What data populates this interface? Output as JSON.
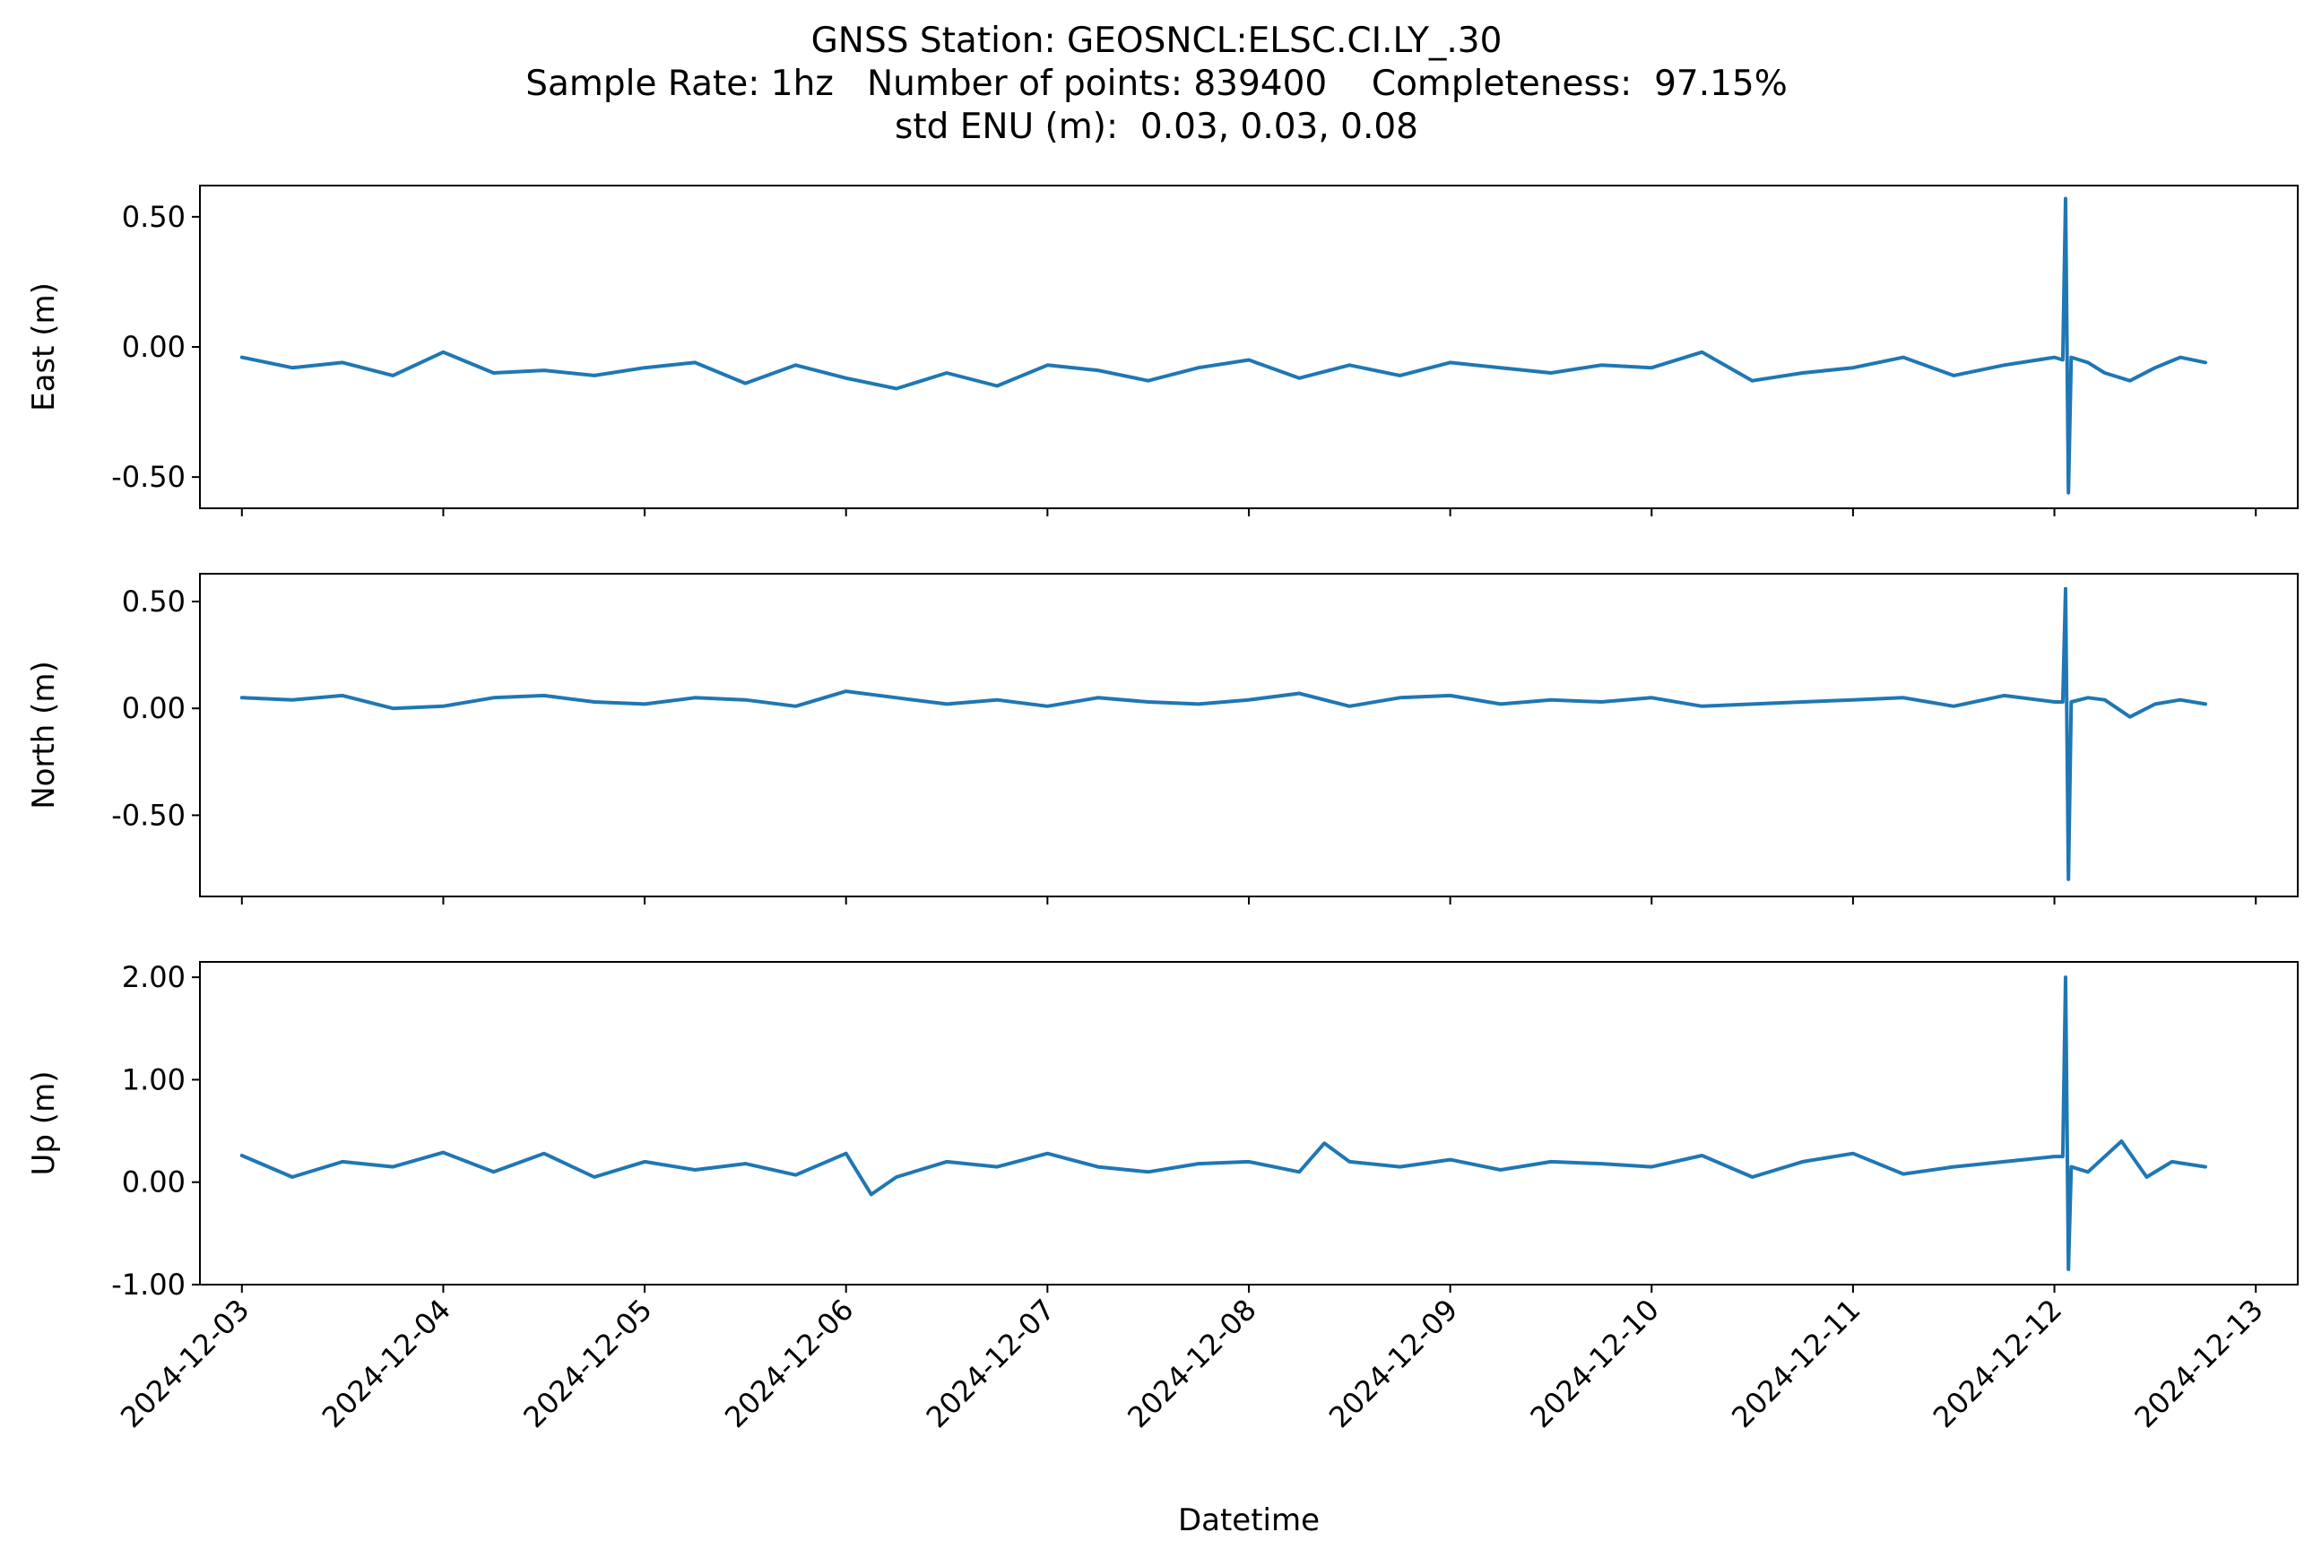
{
  "title": {
    "line1": "GNSS Station: GEOSNCL:ELSC.CI.LY_.30",
    "line2": "Sample Rate: 1hz   Number of points: 839400    Completeness:  97.15%",
    "line3": "std ENU (m):  0.03, 0.03, 0.08"
  },
  "chart_data": {
    "type": "line",
    "xlabel": "Datetime",
    "x_ticks": [
      "2024-12-03",
      "2024-12-04",
      "2024-12-05",
      "2024-12-06",
      "2024-12-07",
      "2024-12-08",
      "2024-12-09",
      "2024-12-10",
      "2024-12-11",
      "2024-12-12",
      "2024-12-13"
    ],
    "xlim": [
      "2024-12-02T19:00",
      "2024-12-13T05:00"
    ],
    "line_color": "#1f77b4",
    "panels": [
      {
        "name": "east",
        "ylabel": "East (m)",
        "ylim": [
          -0.62,
          0.62
        ],
        "yticks": [
          0.5,
          0.0,
          -0.5
        ],
        "ytick_labels": [
          "0.50",
          "0.00",
          "-0.50"
        ],
        "series": {
          "x": [
            "2024-12-03T00:00",
            "2024-12-03T06:00",
            "2024-12-03T12:00",
            "2024-12-03T18:00",
            "2024-12-04T00:00",
            "2024-12-04T06:00",
            "2024-12-04T12:00",
            "2024-12-04T18:00",
            "2024-12-05T00:00",
            "2024-12-05T06:00",
            "2024-12-05T12:00",
            "2024-12-05T18:00",
            "2024-12-06T00:00",
            "2024-12-06T06:00",
            "2024-12-06T12:00",
            "2024-12-06T18:00",
            "2024-12-07T00:00",
            "2024-12-07T06:00",
            "2024-12-07T12:00",
            "2024-12-07T18:00",
            "2024-12-08T00:00",
            "2024-12-08T06:00",
            "2024-12-08T12:00",
            "2024-12-08T18:00",
            "2024-12-09T00:00",
            "2024-12-09T06:00",
            "2024-12-09T12:00",
            "2024-12-09T18:00",
            "2024-12-10T00:00",
            "2024-12-10T06:00",
            "2024-12-10T12:00",
            "2024-12-10T18:00",
            "2024-12-11T00:00",
            "2024-12-11T06:00",
            "2024-12-11T12:00",
            "2024-12-11T18:00",
            "2024-12-12T00:00",
            "2024-12-12T01:00",
            "2024-12-12T01:20",
            "2024-12-12T01:40",
            "2024-12-12T02:00",
            "2024-12-12T04:00",
            "2024-12-12T06:00",
            "2024-12-12T09:00",
            "2024-12-12T12:00",
            "2024-12-12T15:00",
            "2024-12-12T18:00"
          ],
          "y": [
            -0.04,
            -0.08,
            -0.06,
            -0.11,
            -0.02,
            -0.1,
            -0.09,
            -0.11,
            -0.08,
            -0.06,
            -0.14,
            -0.07,
            -0.12,
            -0.16,
            -0.1,
            -0.15,
            -0.07,
            -0.09,
            -0.13,
            -0.08,
            -0.05,
            -0.12,
            -0.07,
            -0.11,
            -0.06,
            -0.08,
            -0.1,
            -0.07,
            -0.08,
            -0.02,
            -0.13,
            -0.1,
            -0.08,
            -0.04,
            -0.11,
            -0.07,
            -0.04,
            -0.05,
            0.57,
            -0.56,
            -0.04,
            -0.06,
            -0.1,
            -0.13,
            -0.08,
            -0.04,
            -0.06
          ]
        }
      },
      {
        "name": "north",
        "ylabel": "North (m)",
        "ylim": [
          -0.88,
          0.63
        ],
        "yticks": [
          0.5,
          0.0,
          -0.5
        ],
        "ytick_labels": [
          "0.50",
          "0.00",
          "-0.50"
        ],
        "series": {
          "x": [
            "2024-12-03T00:00",
            "2024-12-03T06:00",
            "2024-12-03T12:00",
            "2024-12-03T18:00",
            "2024-12-04T00:00",
            "2024-12-04T06:00",
            "2024-12-04T12:00",
            "2024-12-04T18:00",
            "2024-12-05T00:00",
            "2024-12-05T06:00",
            "2024-12-05T12:00",
            "2024-12-05T18:00",
            "2024-12-06T00:00",
            "2024-12-06T06:00",
            "2024-12-06T12:00",
            "2024-12-06T18:00",
            "2024-12-07T00:00",
            "2024-12-07T06:00",
            "2024-12-07T12:00",
            "2024-12-07T18:00",
            "2024-12-08T00:00",
            "2024-12-08T06:00",
            "2024-12-08T12:00",
            "2024-12-08T18:00",
            "2024-12-09T00:00",
            "2024-12-09T06:00",
            "2024-12-09T12:00",
            "2024-12-09T18:00",
            "2024-12-10T00:00",
            "2024-12-10T06:00",
            "2024-12-10T12:00",
            "2024-12-10T18:00",
            "2024-12-11T00:00",
            "2024-12-11T06:00",
            "2024-12-11T12:00",
            "2024-12-11T18:00",
            "2024-12-12T00:00",
            "2024-12-12T01:00",
            "2024-12-12T01:20",
            "2024-12-12T01:40",
            "2024-12-12T02:00",
            "2024-12-12T04:00",
            "2024-12-12T06:00",
            "2024-12-12T09:00",
            "2024-12-12T12:00",
            "2024-12-12T15:00",
            "2024-12-12T18:00"
          ],
          "y": [
            0.05,
            0.04,
            0.06,
            0.0,
            0.01,
            0.05,
            0.06,
            0.03,
            0.02,
            0.05,
            0.04,
            0.01,
            0.08,
            0.05,
            0.02,
            0.04,
            0.01,
            0.05,
            0.03,
            0.02,
            0.04,
            0.07,
            0.01,
            0.05,
            0.06,
            0.02,
            0.04,
            0.03,
            0.05,
            0.01,
            0.02,
            0.03,
            0.04,
            0.05,
            0.01,
            0.06,
            0.03,
            0.03,
            0.56,
            -0.8,
            0.03,
            0.05,
            0.04,
            -0.04,
            0.02,
            0.04,
            0.02
          ]
        }
      },
      {
        "name": "up",
        "ylabel": "Up (m)",
        "ylim": [
          -1.0,
          2.15
        ],
        "yticks": [
          2.0,
          1.0,
          0.0,
          -1.0
        ],
        "ytick_labels": [
          "2.00",
          "1.00",
          "0.00",
          "-1.00"
        ],
        "series": {
          "x": [
            "2024-12-03T00:00",
            "2024-12-03T06:00",
            "2024-12-03T12:00",
            "2024-12-03T18:00",
            "2024-12-04T00:00",
            "2024-12-04T06:00",
            "2024-12-04T12:00",
            "2024-12-04T18:00",
            "2024-12-05T00:00",
            "2024-12-05T06:00",
            "2024-12-05T12:00",
            "2024-12-05T18:00",
            "2024-12-06T00:00",
            "2024-12-06T03:00",
            "2024-12-06T06:00",
            "2024-12-06T12:00",
            "2024-12-06T18:00",
            "2024-12-07T00:00",
            "2024-12-07T06:00",
            "2024-12-07T12:00",
            "2024-12-07T18:00",
            "2024-12-08T00:00",
            "2024-12-08T06:00",
            "2024-12-08T09:00",
            "2024-12-08T12:00",
            "2024-12-08T18:00",
            "2024-12-09T00:00",
            "2024-12-09T06:00",
            "2024-12-09T12:00",
            "2024-12-09T18:00",
            "2024-12-10T00:00",
            "2024-12-10T06:00",
            "2024-12-10T12:00",
            "2024-12-10T18:00",
            "2024-12-11T00:00",
            "2024-12-11T06:00",
            "2024-12-11T12:00",
            "2024-12-11T18:00",
            "2024-12-12T00:00",
            "2024-12-12T01:00",
            "2024-12-12T01:20",
            "2024-12-12T01:40",
            "2024-12-12T02:00",
            "2024-12-12T04:00",
            "2024-12-12T08:00",
            "2024-12-12T11:00",
            "2024-12-12T14:00",
            "2024-12-12T18:00"
          ],
          "y": [
            0.26,
            0.05,
            0.2,
            0.15,
            0.29,
            0.1,
            0.28,
            0.05,
            0.2,
            0.12,
            0.18,
            0.07,
            0.28,
            -0.12,
            0.05,
            0.2,
            0.15,
            0.28,
            0.15,
            0.1,
            0.18,
            0.2,
            0.1,
            0.38,
            0.2,
            0.15,
            0.22,
            0.12,
            0.2,
            0.18,
            0.15,
            0.26,
            0.05,
            0.2,
            0.28,
            0.08,
            0.15,
            0.2,
            0.25,
            0.25,
            2.0,
            -0.85,
            0.15,
            0.1,
            0.4,
            0.05,
            0.2,
            0.15
          ]
        }
      }
    ]
  }
}
